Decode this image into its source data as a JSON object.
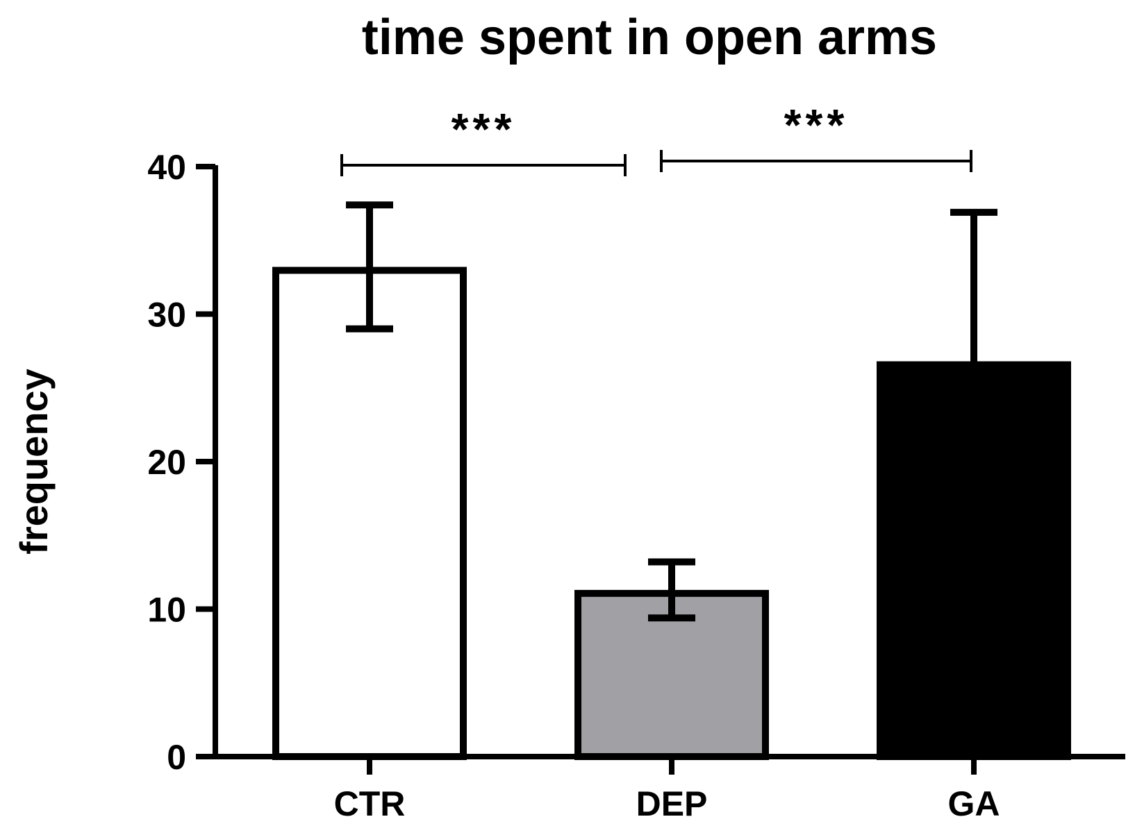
{
  "chart_data": {
    "type": "bar",
    "title": "time spent in open arms",
    "xlabel": "",
    "ylabel": "frequency",
    "categories": [
      "CTR",
      "DEP",
      "GA"
    ],
    "values": [
      33.2,
      11.3,
      26.8
    ],
    "error": [
      4.2,
      1.9,
      10.1
    ],
    "error_direction": [
      "both",
      "both",
      "up"
    ],
    "colors": [
      "#ffffff",
      "#a0a0a5",
      "#000000"
    ],
    "ylim": [
      0,
      40
    ],
    "yticks": [
      "0",
      "10",
      "20",
      "30",
      "40"
    ],
    "grid": false,
    "annotations": [
      {
        "text": "***",
        "from": "CTR",
        "to": "DEP"
      },
      {
        "text": "***",
        "from": "DEP",
        "to": "GA"
      }
    ]
  }
}
